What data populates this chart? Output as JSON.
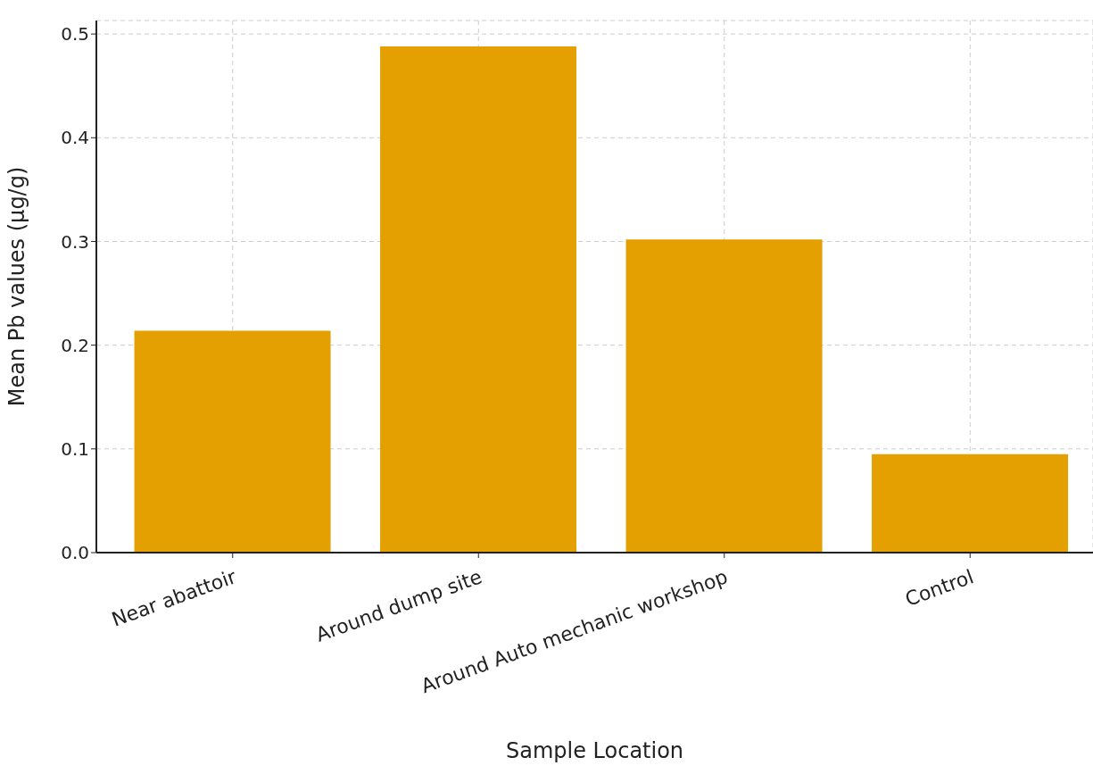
{
  "chart_data": {
    "type": "bar",
    "xlabel": "Sample Location",
    "ylabel": "Mean Pb values (μg/g)",
    "categories": [
      "Near abattoir",
      "Around dump site",
      "Around Auto mechanic workshop",
      "Control"
    ],
    "values": [
      0.214,
      0.488,
      0.302,
      0.095
    ],
    "color": "#e49f00",
    "ylim": [
      0,
      0.513
    ],
    "yticks": [
      {
        "value": 0,
        "label": "0.0"
      },
      0.1,
      0.2,
      0.3,
      0.4,
      0.5
    ],
    "grid": true
  }
}
